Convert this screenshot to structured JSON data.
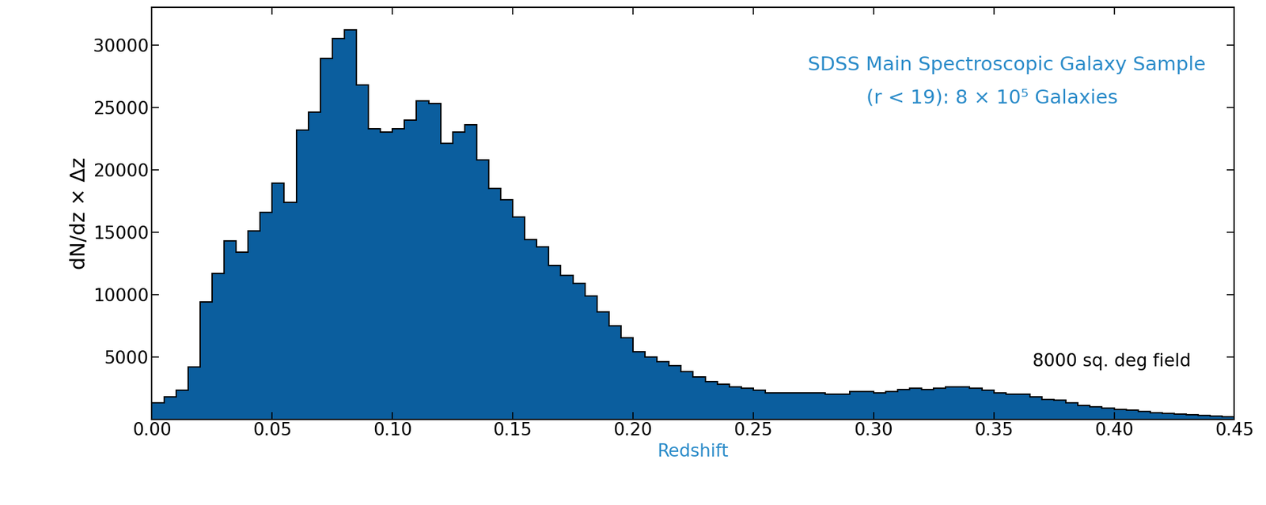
{
  "chart_data": {
    "type": "histogram",
    "annotations": [
      "SDSS Main Spectroscopic Galaxy Sample",
      "(r < 19): 8 × 10⁵ Galaxies",
      "8000 sq. deg field"
    ],
    "x_label": "Redshift",
    "y_label": "dN/dz × Δz",
    "color": "#0b5e9e",
    "bins": [
      0.0,
      0.005,
      0.01,
      0.015,
      0.02,
      0.025,
      0.03,
      0.035,
      0.04,
      0.045,
      0.05,
      0.055,
      0.06,
      0.065,
      0.07,
      0.075,
      0.08,
      0.085,
      0.09,
      0.095,
      0.1,
      0.105,
      0.11,
      0.115,
      0.12,
      0.125,
      0.13,
      0.135,
      0.14,
      0.145,
      0.15,
      0.155,
      0.16,
      0.165,
      0.17,
      0.175,
      0.18,
      0.185,
      0.19,
      0.195,
      0.2,
      0.205,
      0.21,
      0.215,
      0.22,
      0.225,
      0.23,
      0.235,
      0.24,
      0.245,
      0.25,
      0.255,
      0.26,
      0.265,
      0.27,
      0.275,
      0.28,
      0.285,
      0.29,
      0.295,
      0.3,
      0.305,
      0.31,
      0.315,
      0.32,
      0.325,
      0.33,
      0.335,
      0.34,
      0.345,
      0.35,
      0.355,
      0.36,
      0.365,
      0.37,
      0.375,
      0.38,
      0.385,
      0.39,
      0.395,
      0.4,
      0.405,
      0.41,
      0.415,
      0.42,
      0.425,
      0.43,
      0.435,
      0.44,
      0.445,
      0.45
    ],
    "values": [
      1300,
      1800,
      2300,
      4200,
      9400,
      11700,
      14300,
      13400,
      15100,
      16600,
      18900,
      17400,
      23200,
      24600,
      28900,
      30500,
      31200,
      26800,
      23300,
      23000,
      23300,
      24000,
      25500,
      25300,
      22100,
      23000,
      23600,
      20800,
      18500,
      17600,
      16200,
      14400,
      13800,
      12300,
      11500,
      10900,
      9900,
      8600,
      7500,
      6500,
      5400,
      5000,
      4600,
      4300,
      3800,
      3400,
      3000,
      2800,
      2600,
      2500,
      2300,
      2100,
      2100,
      2100,
      2100,
      2100,
      2000,
      2000,
      2200,
      2200,
      2100,
      2200,
      2400,
      2500,
      2400,
      2500,
      2600,
      2600,
      2500,
      2300,
      2100,
      2000,
      2000,
      1800,
      1600,
      1500,
      1300,
      1100,
      1000,
      900,
      800,
      700,
      600,
      500,
      450,
      400,
      350,
      300,
      250,
      200
    ],
    "xlim": [
      0.0,
      0.45
    ],
    "ylim": [
      0,
      33000
    ],
    "xticks": [
      {
        "value": 0.0,
        "label": "0.00"
      },
      {
        "value": 0.05,
        "label": "0.05"
      },
      {
        "value": 0.1,
        "label": "0.10"
      },
      {
        "value": 0.15,
        "label": "0.15"
      },
      {
        "value": 0.2,
        "label": "0.20"
      },
      {
        "value": 0.25,
        "label": "0.25"
      },
      {
        "value": 0.3,
        "label": "0.30"
      },
      {
        "value": 0.35,
        "label": "0.35"
      },
      {
        "value": 0.4,
        "label": "0.40"
      },
      {
        "value": 0.45,
        "label": "0.45"
      }
    ],
    "yticks": [
      5000,
      10000,
      15000,
      20000,
      25000,
      30000
    ]
  }
}
